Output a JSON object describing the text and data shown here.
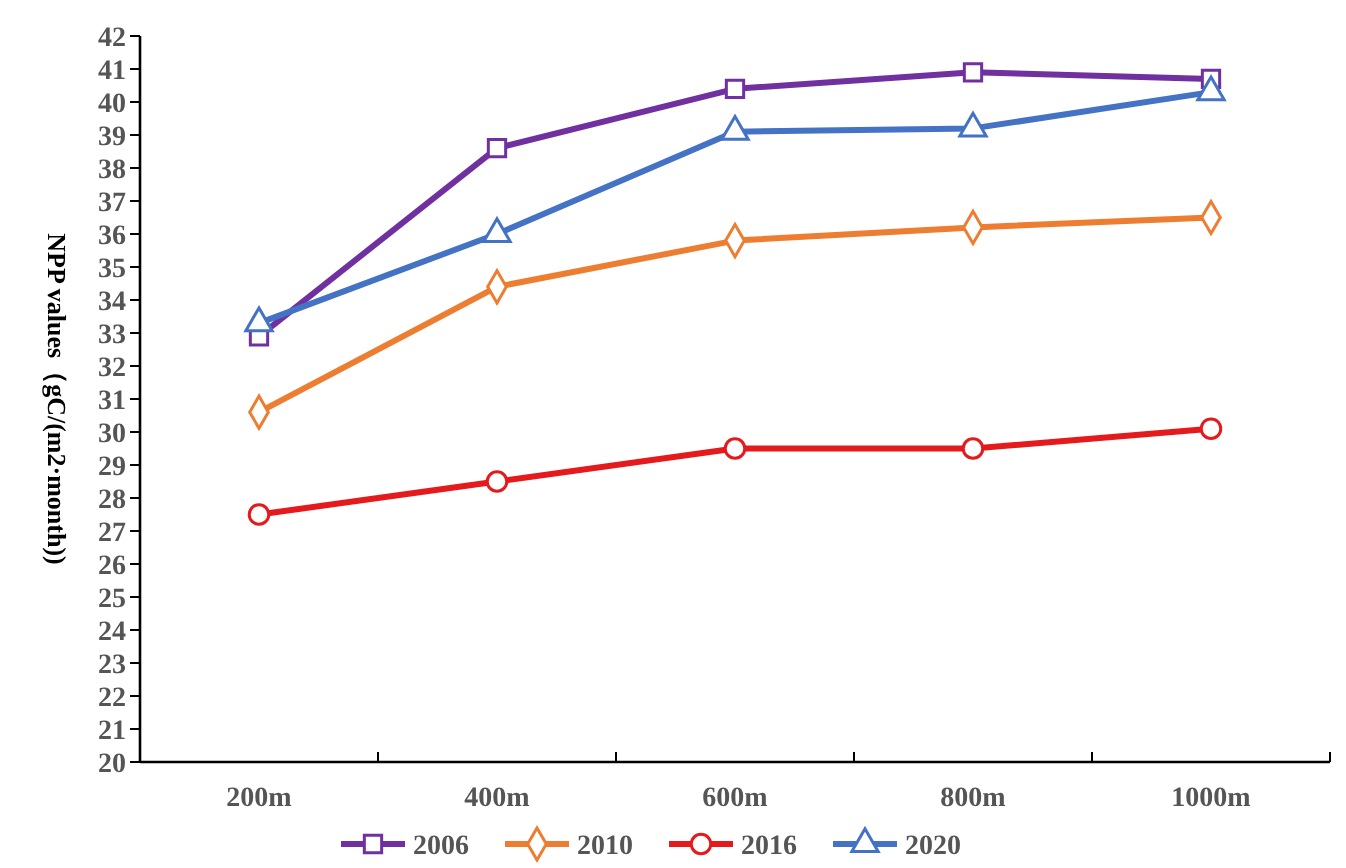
{
  "chart_data": {
    "type": "line",
    "ylabel": "NPP  values（gC/(m2·month))",
    "categories": [
      "200m",
      "400m",
      "600m",
      "800m",
      "1000m"
    ],
    "ylim": [
      20,
      42
    ],
    "yticks": [
      20,
      21,
      22,
      23,
      24,
      25,
      26,
      27,
      28,
      29,
      30,
      31,
      32,
      33,
      34,
      35,
      36,
      37,
      38,
      39,
      40,
      41,
      42
    ],
    "grid": false,
    "legend": "bottom",
    "series": [
      {
        "name": "2006",
        "color": "#7030a0",
        "marker": "square",
        "values": [
          32.9,
          38.6,
          40.4,
          40.9,
          40.7
        ]
      },
      {
        "name": "2010",
        "color": "#ed7d31",
        "marker": "diamond",
        "values": [
          30.6,
          34.4,
          35.8,
          36.2,
          36.5
        ]
      },
      {
        "name": "2016",
        "color": "#e41a1c",
        "marker": "circle",
        "values": [
          27.5,
          28.5,
          29.5,
          29.5,
          30.1
        ]
      },
      {
        "name": "2020",
        "color": "#4472c4",
        "marker": "triangle",
        "values": [
          33.3,
          36.0,
          39.1,
          39.2,
          40.3
        ]
      }
    ]
  }
}
